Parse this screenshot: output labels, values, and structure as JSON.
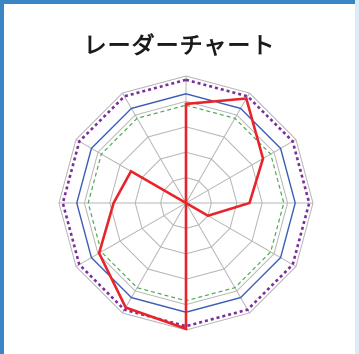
{
  "chart_data": {
    "type": "radar",
    "title": "レーダーチャート",
    "axis_count": 12,
    "rings": 5,
    "grid": true,
    "colors": {
      "grid": "#b5b5b5",
      "red": "#e8242a",
      "blue": "#3b5db5",
      "green": "#4fa84f",
      "purple": "#7a2d9c"
    },
    "series": [
      {
        "color": "red",
        "style": "solid",
        "values": [
          0.78,
          0.95,
          0.7,
          0.5,
          0.2,
          0.0,
          0.99,
          0.95,
          0.79,
          0.57,
          0.5,
          0.0
        ]
      },
      {
        "color": "purple",
        "style": "dotted",
        "values": [
          0.97,
          0.97,
          0.97,
          0.97,
          0.97,
          0.97,
          0.97,
          0.97,
          0.97,
          0.97,
          0.97,
          0.97
        ]
      },
      {
        "color": "blue",
        "style": "solid",
        "values": [
          0.86,
          0.86,
          0.86,
          0.86,
          0.86,
          0.86,
          0.86,
          0.86,
          0.86,
          0.86,
          0.86,
          0.86
        ]
      },
      {
        "color": "green",
        "style": "dashed",
        "values": [
          0.77,
          0.77,
          0.77,
          0.77,
          0.77,
          0.77,
          0.77,
          0.77,
          0.77,
          0.77,
          0.77,
          0.77
        ]
      }
    ]
  }
}
